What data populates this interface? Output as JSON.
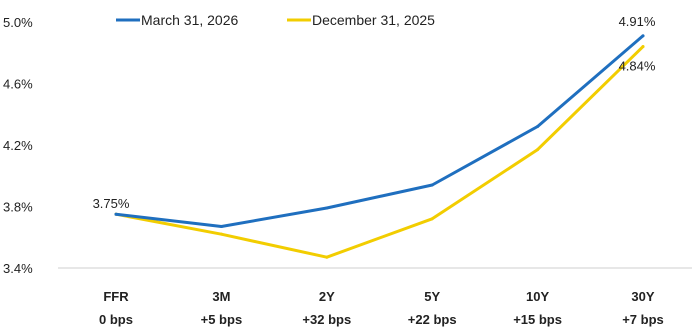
{
  "chart_data": {
    "type": "line",
    "categories": [
      {
        "name": "FFR",
        "change": "0 bps"
      },
      {
        "name": "3M",
        "change": "+5 bps"
      },
      {
        "name": "2Y",
        "change": "+32 bps"
      },
      {
        "name": "5Y",
        "change": "+22 bps"
      },
      {
        "name": "10Y",
        "change": "+15 bps"
      },
      {
        "name": "30Y",
        "change": "+7 bps"
      }
    ],
    "series": [
      {
        "name": "March 31, 2026",
        "color": "#1F6FBF",
        "values": [
          3.75,
          3.67,
          3.79,
          3.94,
          4.32,
          4.91
        ]
      },
      {
        "name": "December 31, 2025",
        "color": "#F2CD00",
        "values": [
          3.75,
          3.62,
          3.47,
          3.72,
          4.17,
          4.84
        ]
      }
    ],
    "ylim": [
      3.4,
      5.0
    ],
    "yticks": [
      "3.4%",
      "3.8%",
      "4.2%",
      "4.6%",
      "5.0%"
    ],
    "yticks_values": [
      3.4,
      3.8,
      4.2,
      4.6,
      5.0
    ],
    "data_labels": [
      {
        "series": 0,
        "index": 0,
        "text": "3.75%"
      },
      {
        "series": 0,
        "index": 5,
        "text": "4.91%"
      },
      {
        "series": 1,
        "index": 5,
        "text": "4.84%"
      }
    ],
    "legend": "top",
    "grid": false,
    "title": "",
    "xlabel": "",
    "ylabel": ""
  }
}
